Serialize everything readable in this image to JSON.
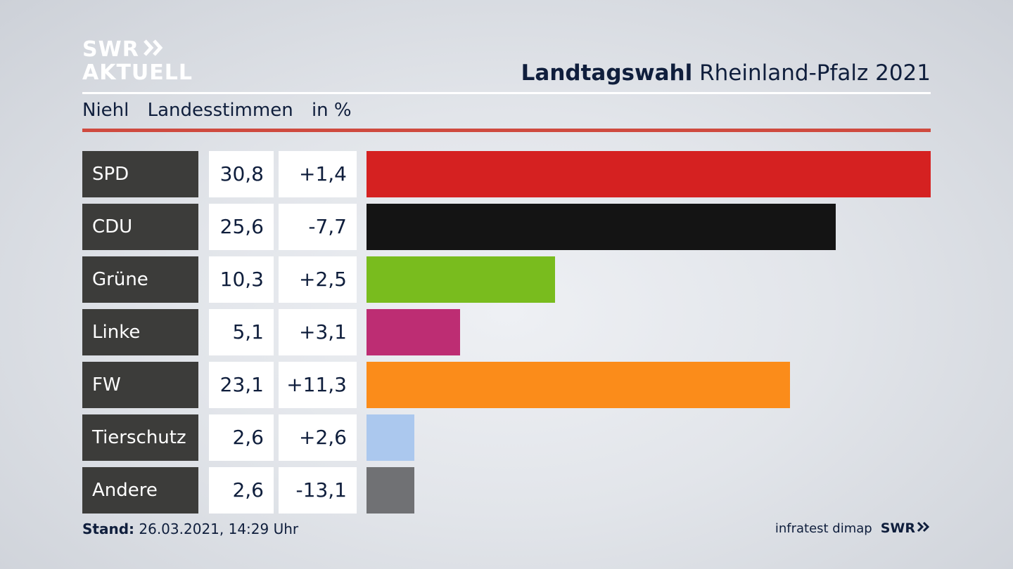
{
  "brand": {
    "line1": "SWR",
    "line2": "AKTUELL"
  },
  "header": {
    "title_bold": "Landtagswahl",
    "title_rest": "Rheinland-Pfalz 2021"
  },
  "subheader": {
    "place": "Niehl",
    "measure": "Landesstimmen",
    "unit": "in %"
  },
  "colors": {
    "red_rule": "#cf4a3f",
    "party_cell": "#3c3c3a"
  },
  "chart_data": {
    "type": "bar",
    "orientation": "horizontal",
    "categories": [
      "SPD",
      "CDU",
      "Grüne",
      "Linke",
      "FW",
      "Tierschutz",
      "Andere"
    ],
    "values": [
      30.8,
      25.6,
      10.3,
      5.1,
      23.1,
      2.6,
      2.6
    ],
    "value_labels": [
      "30,8",
      "25,6",
      "10,3",
      "5,1",
      "23,1",
      "2,6",
      "2,6"
    ],
    "changes": [
      1.4,
      -7.7,
      2.5,
      3.1,
      11.3,
      2.6,
      -13.1
    ],
    "change_labels": [
      "+1,4",
      "-7,7",
      "+2,5",
      "+3,1",
      "+11,3",
      "+2,6",
      "-13,1"
    ],
    "bar_colors": [
      "#d52121",
      "#141414",
      "#79bc1e",
      "#bd2d73",
      "#fb8c1a",
      "#abc8ee",
      "#707174"
    ],
    "xlim": [
      0,
      30.8
    ]
  },
  "footer": {
    "stand_label": "Stand:",
    "stand_value": "26.03.2021, 14:29 Uhr",
    "source": "infratest dimap",
    "broadcaster": "SWR"
  }
}
